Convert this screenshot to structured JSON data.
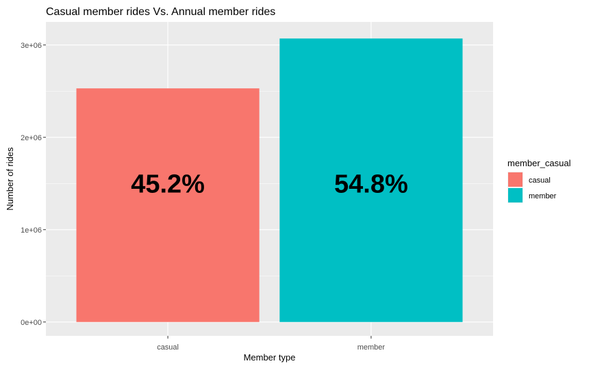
{
  "chart_data": {
    "type": "bar",
    "title": "Casual member rides Vs. Annual member rides",
    "xlabel": "Member type",
    "ylabel": "Number of rides",
    "categories": [
      "casual",
      "member"
    ],
    "values": [
      2530000,
      3070000
    ],
    "value_labels": [
      "45.2%",
      "54.8%"
    ],
    "colors": [
      "#F8766D",
      "#00BFC4"
    ],
    "ylim": [
      -150000,
      3250000
    ],
    "y_ticks": [
      0,
      1000000,
      2000000,
      3000000
    ],
    "y_tick_labels": [
      "0e+00",
      "1e+06",
      "2e+06",
      "3e+06"
    ],
    "grid": true,
    "panel_color": "#EBEBEB",
    "legend": {
      "title": "member_casual",
      "placement": "right",
      "items": [
        {
          "label": "casual",
          "color": "#F8766D"
        },
        {
          "label": "member",
          "color": "#00BFC4"
        }
      ]
    }
  }
}
